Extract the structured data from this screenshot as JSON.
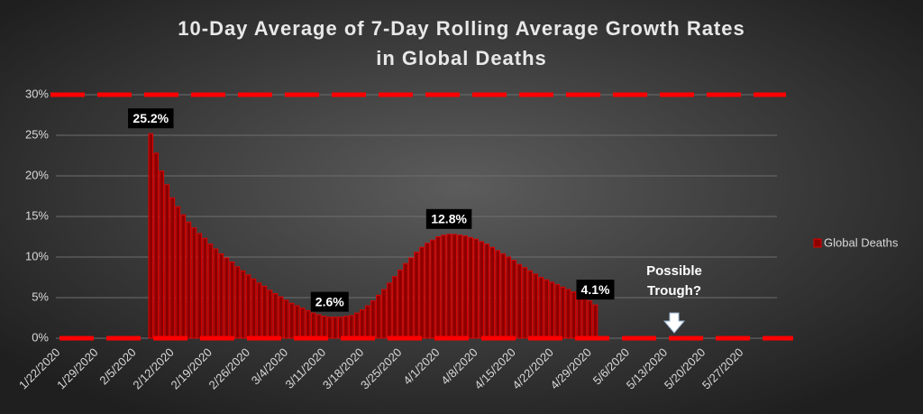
{
  "chart_data": {
    "type": "bar",
    "title": [
      "10-Day Average of 7-Day Rolling Average Growth Rates",
      "in Global Deaths"
    ],
    "categories": [
      "1/22/2020",
      null,
      null,
      null,
      null,
      null,
      null,
      "1/29/2020",
      null,
      null,
      null,
      null,
      null,
      null,
      "2/5/2020",
      null,
      null,
      null,
      null,
      null,
      null,
      "2/12/2020",
      null,
      null,
      null,
      null,
      null,
      null,
      "2/19/2020",
      null,
      null,
      null,
      null,
      null,
      null,
      "2/26/2020",
      null,
      null,
      null,
      null,
      null,
      null,
      "3/4/2020",
      null,
      null,
      null,
      null,
      null,
      null,
      "3/11/2020",
      null,
      null,
      null,
      null,
      null,
      null,
      "3/18/2020",
      null,
      null,
      null,
      null,
      null,
      null,
      "3/25/2020",
      null,
      null,
      null,
      null,
      null,
      null,
      "4/1/2020",
      null,
      null,
      null,
      null,
      null,
      null,
      "4/8/2020",
      null,
      null,
      null,
      null,
      null,
      null,
      "4/15/2020",
      null,
      null,
      null,
      null,
      null,
      null,
      "4/22/2020",
      null,
      null,
      null,
      null,
      null,
      null,
      "4/29/2020",
      null,
      null,
      null,
      null,
      null,
      null,
      "5/6/2020",
      null,
      null,
      null,
      null,
      null,
      null,
      "5/13/2020",
      null,
      null,
      null,
      null,
      null,
      null,
      "5/20/2020",
      null,
      null,
      null,
      null,
      null,
      null,
      "5/27/2020",
      null,
      null,
      null,
      null,
      null,
      null
    ],
    "series": [
      {
        "name": "Global Deaths",
        "color": "#8b0000",
        "edge_color": "#e00000",
        "values": [
          null,
          null,
          null,
          null,
          null,
          null,
          null,
          null,
          null,
          null,
          null,
          null,
          null,
          null,
          null,
          null,
          null,
          25.2,
          22.8,
          20.6,
          18.9,
          17.3,
          16.2,
          15.2,
          14.3,
          13.6,
          12.9,
          12.3,
          11.6,
          11.0,
          10.4,
          9.9,
          9.4,
          8.8,
          8.3,
          7.8,
          7.3,
          6.8,
          6.4,
          5.9,
          5.5,
          5.1,
          4.7,
          4.3,
          4.0,
          3.7,
          3.4,
          3.1,
          2.9,
          2.7,
          2.6,
          2.6,
          2.6,
          2.7,
          2.8,
          3.1,
          3.5,
          4.0,
          4.6,
          5.3,
          6.0,
          6.8,
          7.6,
          8.4,
          9.2,
          9.9,
          10.6,
          11.2,
          11.7,
          12.1,
          12.5,
          12.7,
          12.8,
          12.8,
          12.7,
          12.6,
          12.4,
          12.2,
          11.9,
          11.6,
          11.2,
          10.8,
          10.4,
          10.0,
          9.6,
          9.1,
          8.7,
          8.3,
          7.9,
          7.5,
          7.2,
          6.9,
          6.6,
          6.3,
          6.0,
          5.7,
          5.3,
          4.9,
          4.6,
          4.1,
          null,
          null,
          null,
          null,
          null,
          null,
          null,
          null,
          null,
          null,
          null,
          null,
          null,
          null,
          null,
          null,
          null,
          null,
          null,
          null,
          null,
          null,
          null,
          null,
          null,
          null,
          null,
          null,
          null,
          null,
          null,
          null,
          null
        ],
        "value_labels": [
          null,
          null,
          null,
          null,
          null,
          null,
          null,
          null,
          null,
          null,
          null,
          null,
          null,
          null,
          null,
          null,
          null,
          "25.2%",
          null,
          null,
          null,
          null,
          null,
          null,
          null,
          null,
          null,
          null,
          null,
          null,
          null,
          null,
          null,
          null,
          null,
          null,
          null,
          null,
          null,
          null,
          null,
          null,
          null,
          null,
          null,
          null,
          null,
          null,
          null,
          null,
          "2.6%",
          null,
          null,
          null,
          null,
          null,
          null,
          null,
          null,
          null,
          null,
          null,
          null,
          null,
          null,
          null,
          null,
          null,
          null,
          null,
          null,
          null,
          "12.8%",
          null,
          null,
          null,
          null,
          null,
          null,
          null,
          null,
          null,
          null,
          null,
          null,
          null,
          null,
          null,
          null,
          null,
          null,
          null,
          null,
          null,
          null,
          null,
          null,
          null,
          null,
          "4.1%",
          null,
          null,
          null,
          null,
          null,
          null,
          null,
          null,
          null,
          null,
          null,
          null,
          null,
          null,
          null,
          null,
          null,
          null,
          null,
          null,
          null,
          null,
          null,
          null,
          null,
          null,
          null,
          null,
          null,
          null,
          null,
          null,
          null
        ]
      }
    ],
    "ylim": [
      0,
      30
    ],
    "yticks": [
      {
        "value": 0,
        "label": "0%"
      },
      {
        "value": 5,
        "label": "5%"
      },
      {
        "value": 10,
        "label": "10%"
      },
      {
        "value": 15,
        "label": "15%"
      },
      {
        "value": 20,
        "label": "20%"
      },
      {
        "value": 25,
        "label": "25%"
      },
      {
        "value": 30,
        "label": "30%"
      }
    ],
    "grid": true,
    "reference_lines": [
      0,
      30
    ],
    "reference_color": "#ff0000",
    "annotation": [
      "Possible",
      "Trough?"
    ],
    "legend": "right"
  }
}
